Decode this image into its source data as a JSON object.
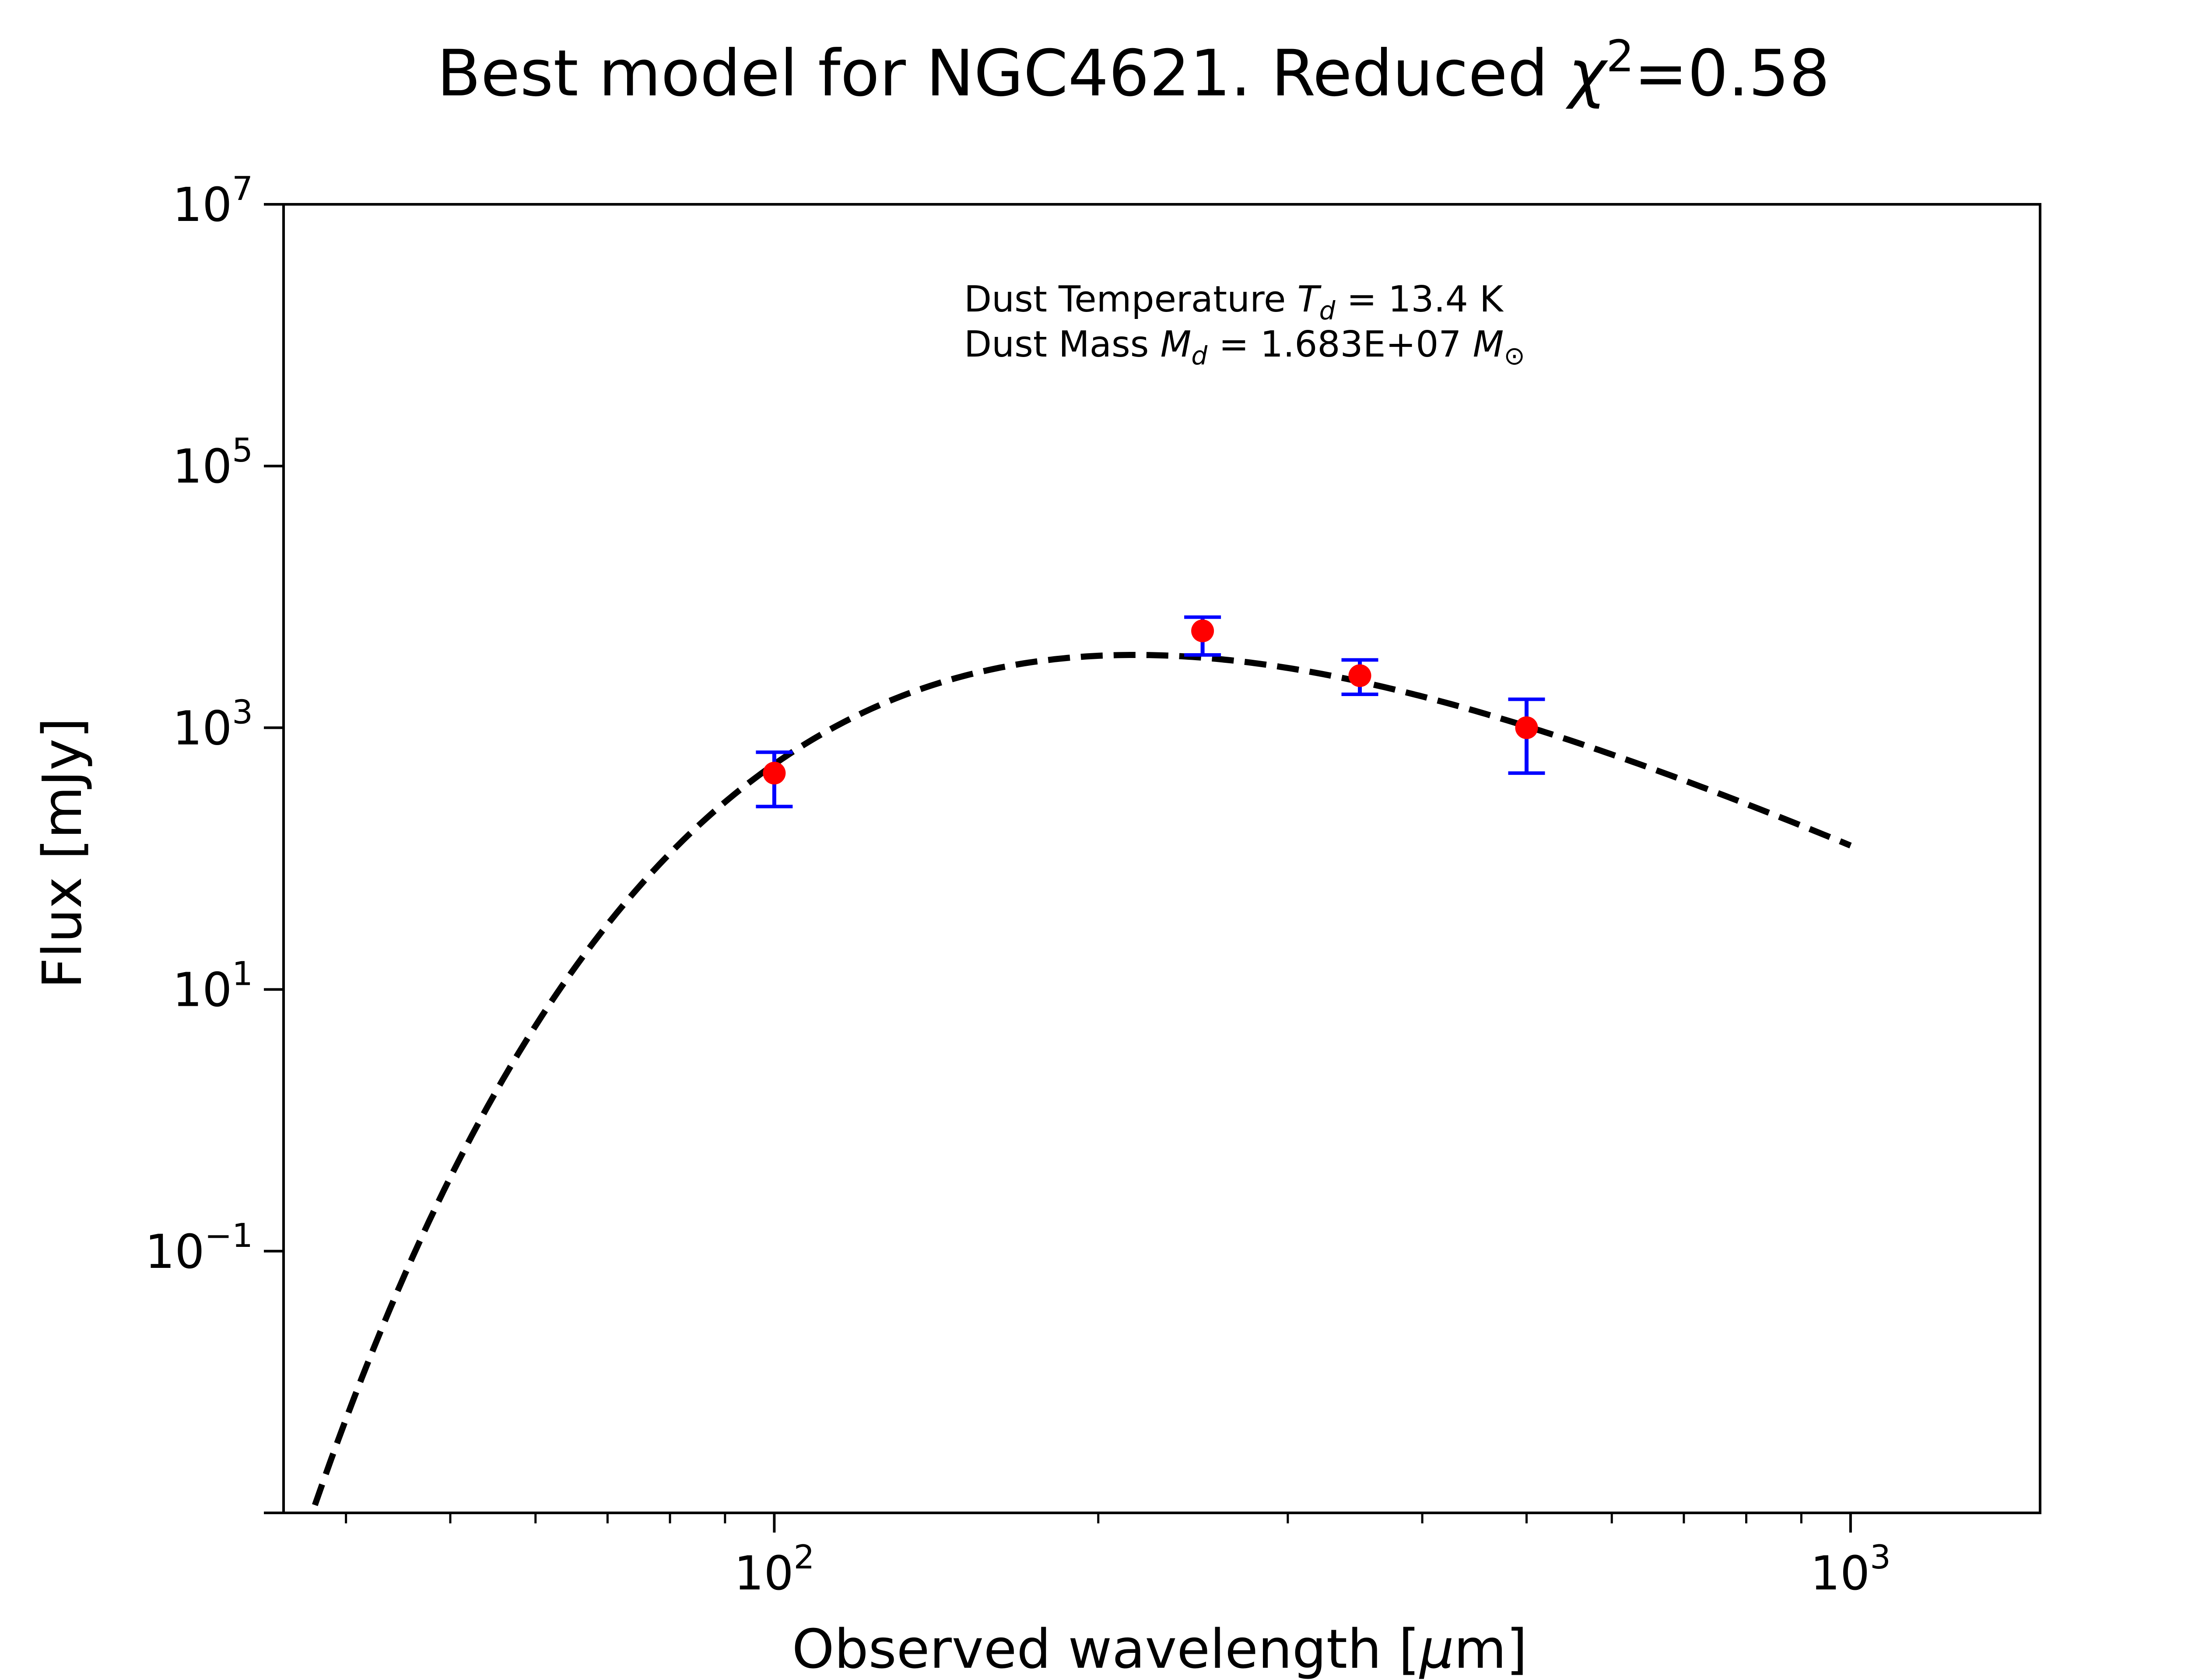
{
  "chart_data": {
    "type": "scatter",
    "title": {
      "prefix": "Best model for NGC4621. Reduced ",
      "symbol": "χ",
      "exponent": "2",
      "suffix": "=0.58"
    },
    "xlabel": {
      "text": "Observed wavelength [",
      "mu": "μ",
      "unit": "m]"
    },
    "ylabel": "Flux [mJy]",
    "xscale": "log",
    "yscale": "log",
    "xlim": [
      35,
      1500
    ],
    "ylim": [
      0.001,
      10000000
    ],
    "xticks": [
      {
        "value": 100,
        "base": "10",
        "exp": "2"
      },
      {
        "value": 1000,
        "base": "10",
        "exp": "3"
      }
    ],
    "yticks": [
      {
        "value": 0.1,
        "base": "10",
        "exp": "−1"
      },
      {
        "value": 10,
        "base": "10",
        "exp": "1"
      },
      {
        "value": 1000,
        "base": "10",
        "exp": "3"
      },
      {
        "value": 100000,
        "base": "10",
        "exp": "5"
      },
      {
        "value": 10000000,
        "base": "10",
        "exp": "7"
      }
    ],
    "annotation": {
      "line1_prefix": "Dust Temperature ",
      "line1_var": "T",
      "line1_sub": "d",
      "line1_value": " = 13.4 K",
      "line2_prefix": "Dust Mass ",
      "line2_var": "M",
      "line2_sub": "d",
      "line2_value": " = 1.683E+07 ",
      "line2_unit_var": "M",
      "line2_unit_sub": "⊙"
    },
    "observations": {
      "x": [
        100,
        250,
        350,
        500
      ],
      "y": [
        450,
        5500,
        2500,
        1000
      ],
      "yerr_low": [
        250,
        3600,
        1800,
        450
      ],
      "yerr_high": [
        650,
        7000,
        3300,
        1650
      ]
    },
    "model": {
      "style": "dashed",
      "temperature_K": 13.4,
      "x_range": [
        35,
        1000
      ],
      "peak_x": 218,
      "peak_y": 3600
    },
    "colors": {
      "model_line": "#000000",
      "points": "#ff0000",
      "errorbars": "#0000ff",
      "frame": "#000000"
    }
  }
}
